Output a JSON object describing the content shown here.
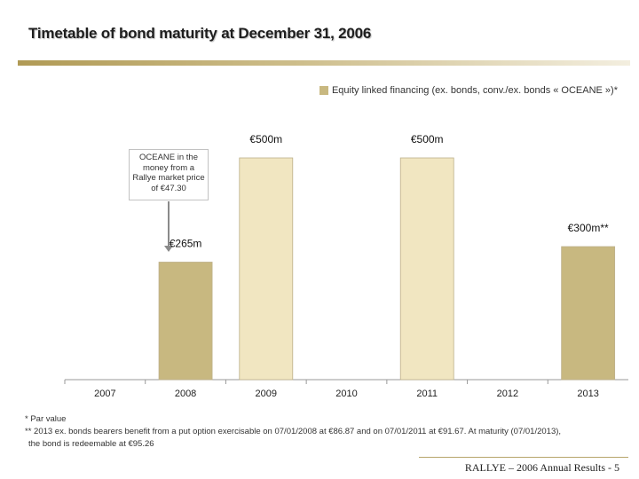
{
  "title": "Timetable of bond maturity at December 31, 2006",
  "colors": {
    "accent": "#b09a55",
    "bar_dark": "#c8b880",
    "bar_light": "#f1e6c1",
    "bar_outline": "#bdb08a",
    "gridline": "#999999"
  },
  "legend": {
    "label": "Equity linked financing (ex. bonds, conv./ex. bonds « OCEANE »)*"
  },
  "callout": {
    "text": "OCEANE in the money from a Rallye market price of €47.30"
  },
  "chart_data": {
    "type": "bar",
    "categories": [
      "2007",
      "2008",
      "2009",
      "2010",
      "2011",
      "2012",
      "2013"
    ],
    "values": [
      0,
      265,
      500,
      0,
      500,
      0,
      300
    ],
    "labels": [
      "",
      "€265m",
      "€500m",
      "",
      "€500m",
      "",
      "€300m**"
    ],
    "title": "",
    "xlabel": "",
    "ylabel": "",
    "ylim": [
      0,
      600
    ],
    "grid": false,
    "legend_position": "top-right"
  },
  "footnotes": [
    "*  Par value",
    "** 2013 ex. bonds bearers benefit from a put option exercisable on 07/01/2008 at €86.87 and on 07/01/2011 at €91.67. At maturity (07/01/2013),",
    "the bond is redeemable at €95.26"
  ],
  "footer": "RALLYE – 2006 Annual Results  -  5"
}
